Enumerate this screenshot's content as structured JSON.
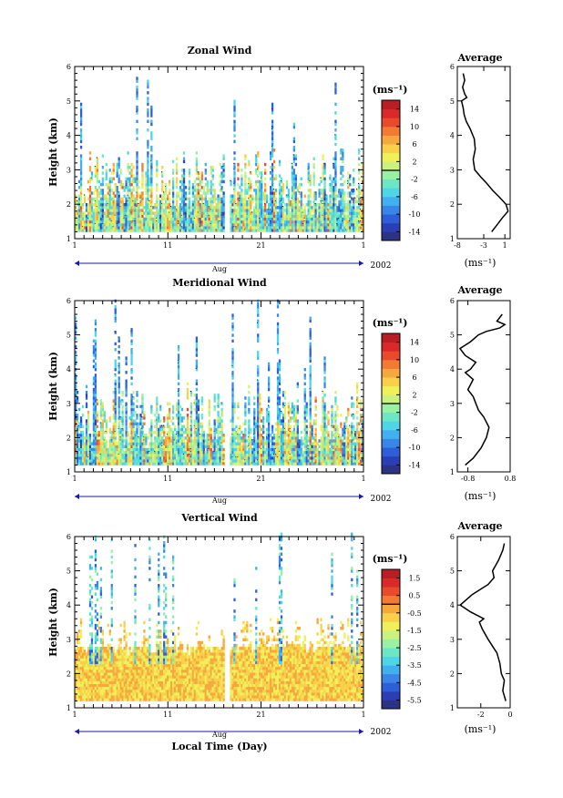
{
  "chart_data": [
    {
      "type": "heatmap",
      "title": "Zonal Wind",
      "ylabel": "Height (km)",
      "ylim": [
        1,
        6
      ],
      "y_ticks": [
        "1",
        "2",
        "3",
        "4",
        "5",
        "6"
      ],
      "x_ticks": [
        "1",
        "11",
        "21",
        "1"
      ],
      "month_label": "Aug",
      "year_label": "2002",
      "colorbar": {
        "unit": "(ms⁻¹)",
        "labels": [
          "14",
          "10",
          "6",
          "2",
          "-2",
          "-6",
          "-10",
          "-14"
        ],
        "range": [
          -16,
          16
        ],
        "colors": [
          "#2c3284",
          "#2b3fb4",
          "#2e5fd9",
          "#3a86e8",
          "#42b0ee",
          "#4fd6e6",
          "#6ce6c4",
          "#9af0a4",
          "#c9f27e",
          "#f0f05a",
          "#f8d04a",
          "#f6a83e",
          "#f27a34",
          "#e84a2c",
          "#d82a28",
          "#b81e22"
        ]
      },
      "average": {
        "title": "Average",
        "xlabel": "(ms⁻¹)",
        "x_ticks": [
          "-8",
          "-3",
          "1"
        ],
        "xlim": [
          -8,
          2
        ],
        "x": [
          -1.5,
          -0.5,
          0.5,
          1.6,
          1.2,
          0.0,
          -1.3,
          -2.4,
          -3.6,
          -4.7,
          -5.0,
          -4.6,
          -4.8,
          -5.6,
          -6.3,
          -6.7,
          -6.9,
          -7.2,
          -6.2,
          -6.6,
          -7.0,
          -6.6,
          -6.9
        ],
        "y": [
          1.2,
          1.4,
          1.6,
          1.8,
          2.0,
          2.2,
          2.4,
          2.6,
          2.8,
          3.0,
          3.3,
          3.6,
          3.9,
          4.2,
          4.4,
          4.6,
          4.8,
          5.0,
          5.1,
          5.2,
          5.4,
          5.6,
          5.8
        ]
      }
    },
    {
      "type": "heatmap",
      "title": "Meridional Wind",
      "ylabel": "Height (km)",
      "ylim": [
        1,
        6
      ],
      "y_ticks": [
        "1",
        "2",
        "3",
        "4",
        "5",
        "6"
      ],
      "x_ticks": [
        "1",
        "11",
        "21",
        "1"
      ],
      "month_label": "Aug",
      "year_label": "2002",
      "colorbar": {
        "unit": "(ms⁻¹)",
        "labels": [
          "14",
          "10",
          "6",
          "2",
          "-2",
          "-6",
          "-10",
          "-14"
        ],
        "range": [
          -16,
          16
        ],
        "colors": [
          "#2c3284",
          "#2b3fb4",
          "#2e5fd9",
          "#3a86e8",
          "#42b0ee",
          "#4fd6e6",
          "#6ce6c4",
          "#9af0a4",
          "#c9f27e",
          "#f0f05a",
          "#f8d04a",
          "#f6a83e",
          "#f27a34",
          "#e84a2c",
          "#d82a28",
          "#b81e22"
        ]
      },
      "average": {
        "title": "Average",
        "xlabel": "(ms⁻¹)",
        "x_ticks": [
          "-0.8",
          "0.8"
        ],
        "xlim": [
          -1.2,
          0.8
        ],
        "x": [
          -0.9,
          -0.6,
          -0.3,
          -0.1,
          0.0,
          -0.2,
          -0.4,
          -0.5,
          -0.6,
          -0.8,
          -0.6,
          -0.9,
          -0.7,
          -0.5,
          -0.9,
          -1.1,
          -0.7,
          -0.4,
          -0.1,
          0.4,
          0.6,
          0.3,
          0.5
        ],
        "y": [
          1.2,
          1.4,
          1.7,
          2.0,
          2.3,
          2.6,
          2.8,
          3.0,
          3.2,
          3.4,
          3.7,
          3.9,
          4.0,
          4.2,
          4.4,
          4.6,
          4.8,
          5.0,
          5.1,
          5.2,
          5.3,
          5.4,
          5.6
        ]
      }
    },
    {
      "type": "heatmap",
      "title": "Vertical Wind",
      "xlabel": "Local Time (Day)",
      "ylabel": "Height (km)",
      "ylim": [
        1,
        6
      ],
      "y_ticks": [
        "1",
        "2",
        "3",
        "4",
        "5",
        "6"
      ],
      "x_ticks": [
        "1",
        "11",
        "21",
        "1"
      ],
      "month_label": "Aug",
      "year_label": "2002",
      "colorbar": {
        "unit": "(ms⁻¹)",
        "labels": [
          "1.5",
          "0.5",
          "-0.5",
          "-1.5",
          "-2.5",
          "-3.5",
          "-4.5",
          "-5.5"
        ],
        "range": [
          -6,
          2
        ],
        "colors": [
          "#2c3284",
          "#2b3fb4",
          "#2e5fd9",
          "#3a86e8",
          "#42b0ee",
          "#4fd6e6",
          "#6ce6c4",
          "#9af0a4",
          "#c9f27e",
          "#f0f05a",
          "#f8d04a",
          "#f6a83e",
          "#f27a34",
          "#e84a2c",
          "#d82a28",
          "#b81e22"
        ]
      },
      "average": {
        "title": "Average",
        "xlabel": "(ms⁻¹)",
        "x_ticks": [
          "-2",
          "0"
        ],
        "xlim": [
          -3.6,
          0
        ],
        "x": [
          -0.3,
          -0.5,
          -0.4,
          -0.6,
          -0.7,
          -0.9,
          -1.5,
          -1.9,
          -2.1,
          -1.8,
          -2.7,
          -3.4,
          -2.6,
          -1.5,
          -1.1,
          -1.2,
          -0.8,
          -0.5,
          -0.4
        ],
        "y": [
          1.2,
          1.5,
          1.8,
          2.0,
          2.3,
          2.6,
          3.0,
          3.3,
          3.5,
          3.6,
          3.8,
          4.0,
          4.3,
          4.6,
          4.8,
          5.0,
          5.3,
          5.6,
          5.8
        ]
      }
    }
  ]
}
